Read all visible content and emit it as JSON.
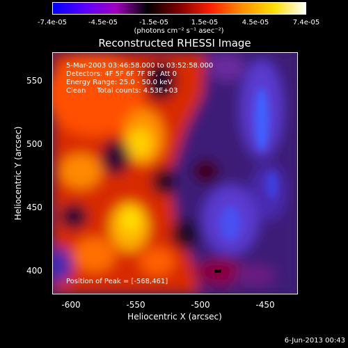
{
  "chart_data": {
    "type": "heatmap",
    "title": "Reconstructed RHESSI Image",
    "xlabel": "Heliocentric X (arcsec)",
    "ylabel": "Heliocentric Y (arcsec)",
    "xlim": [
      -615,
      -425
    ],
    "ylim": [
      382,
      573
    ],
    "xticks": [
      "-600",
      "-550",
      "-500",
      "-450"
    ],
    "yticks": [
      "550",
      "500",
      "450",
      "400"
    ],
    "xtick_values": [
      -600,
      -550,
      -500,
      -450
    ],
    "ytick_values": [
      550,
      500,
      450,
      400
    ],
    "colorbar": {
      "labels": [
        "-7.4e-05",
        "-4.5e-05",
        "-1.5e-05",
        "1.5e-05",
        "4.5e-05",
        "7.4e-05"
      ],
      "values": [
        -7.4e-05,
        -4.5e-05,
        -1.5e-05,
        1.5e-05,
        4.5e-05,
        7.4e-05
      ],
      "unit_label": "(photons cm⁻² s⁻¹ asec⁻²)",
      "colors": [
        "#0000ff",
        "#5a00ff",
        "#a000c0",
        "#000000",
        "#800000",
        "#ff2000",
        "#ff9000",
        "#ffe000",
        "#ffffff"
      ]
    },
    "info_lines": [
      "5-Mar-2003 03:46:58.000 to 03:52:58.000",
      "Detectors: 4F 5F 6F 7F 8F, Att 0",
      "Energy Range: 25.0 - 50.0 keV",
      "Clean     Total counts: 4.53E+03"
    ],
    "peak_label": "Position of Peak = [-568,461]",
    "peak": [
      -568,
      461
    ]
  },
  "footer": {
    "date": "6-Jun-2013 00:43"
  },
  "colors": {
    "background": "#000000",
    "axes": "#ffffff"
  }
}
